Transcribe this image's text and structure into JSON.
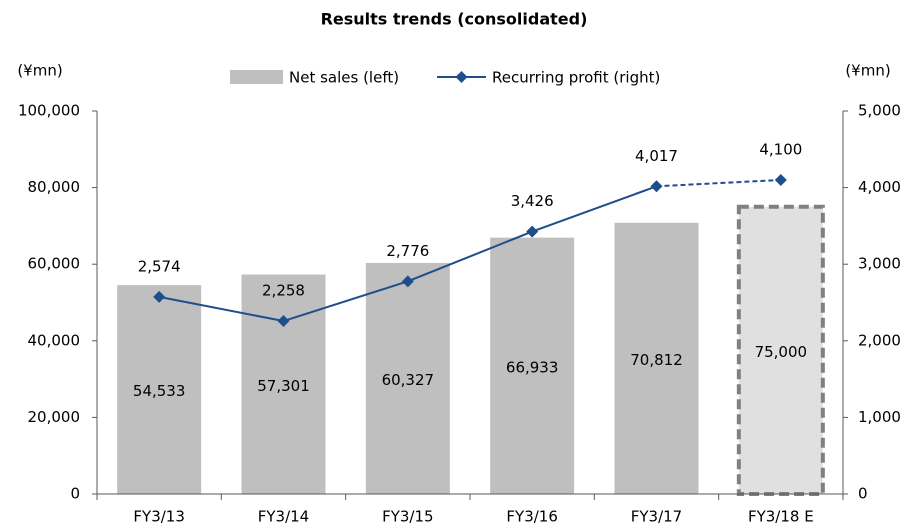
{
  "chart_data": {
    "type": "bar_line",
    "title": "Results trends (consolidated)",
    "y_unit": "(¥mn)",
    "y2_unit": "(¥mn)",
    "categories": [
      "FY3/13",
      "FY3/14",
      "FY3/15",
      "FY3/16",
      "FY3/17",
      "FY3/18 E"
    ],
    "estimate": [
      false,
      false,
      false,
      false,
      false,
      true
    ],
    "series": [
      {
        "name": "Net sales (left)",
        "type": "bar",
        "color": "#bfbfbf",
        "estimate_color": "#e0e0e0",
        "values": [
          54533,
          57301,
          60327,
          66933,
          70812,
          75000
        ],
        "value_labels": [
          "54,533",
          "57,301",
          "60,327",
          "66,933",
          "70,812",
          "75,000"
        ]
      },
      {
        "name": "Recurring profit (right)",
        "type": "line",
        "axis": "y2",
        "color": "#1f4e8c",
        "values": [
          2574,
          2258,
          2776,
          3426,
          4017,
          4100
        ],
        "value_labels": [
          "2,574",
          "2,258",
          "2,776",
          "3,426",
          "4,017",
          "4,100"
        ]
      }
    ],
    "ylim": [
      0,
      100000
    ],
    "yticks": [
      0,
      {
        "value": 20000,
        "label": "20,000"
      },
      {
        "value": 40000,
        "label": "40,000"
      },
      {
        "value": 60000,
        "label": "60,000"
      },
      {
        "value": 80000,
        "label": "80,000"
      },
      {
        "value": 100000,
        "label": "100,000"
      }
    ],
    "y2lim": [
      0,
      5000
    ],
    "y2ticks": [
      0,
      {
        "value": 1000,
        "label": "1,000"
      },
      {
        "value": 2000,
        "label": "2,000"
      },
      {
        "value": 3000,
        "label": "3,000"
      },
      {
        "value": 4000,
        "label": "4,000"
      },
      {
        "value": 5000,
        "label": "5,000"
      }
    ],
    "legend": "top"
  }
}
